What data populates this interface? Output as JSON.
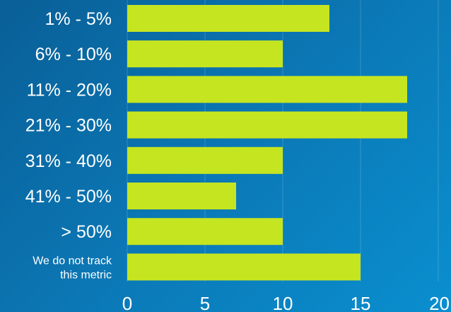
{
  "chart_data": {
    "type": "bar",
    "orientation": "horizontal",
    "title": "",
    "xlabel": "",
    "ylabel": "",
    "categories": [
      "1% - 5%",
      "6% - 10%",
      "11% - 20%",
      "21% - 30%",
      "31% - 40%",
      "41% - 50%",
      "> 50%",
      "We do not track this metric"
    ],
    "values": [
      13,
      10,
      18,
      18,
      10,
      7,
      10,
      15
    ],
    "xlim": [
      0,
      20
    ],
    "x_ticks": [
      "0",
      "5",
      "10",
      "15",
      "20"
    ],
    "grid": true,
    "colors": {
      "bar": "#c5e520",
      "text": "#ffffff",
      "background_start": "#0a5f97",
      "background_end": "#0a8fcf",
      "gridline": "#ffffff"
    }
  }
}
